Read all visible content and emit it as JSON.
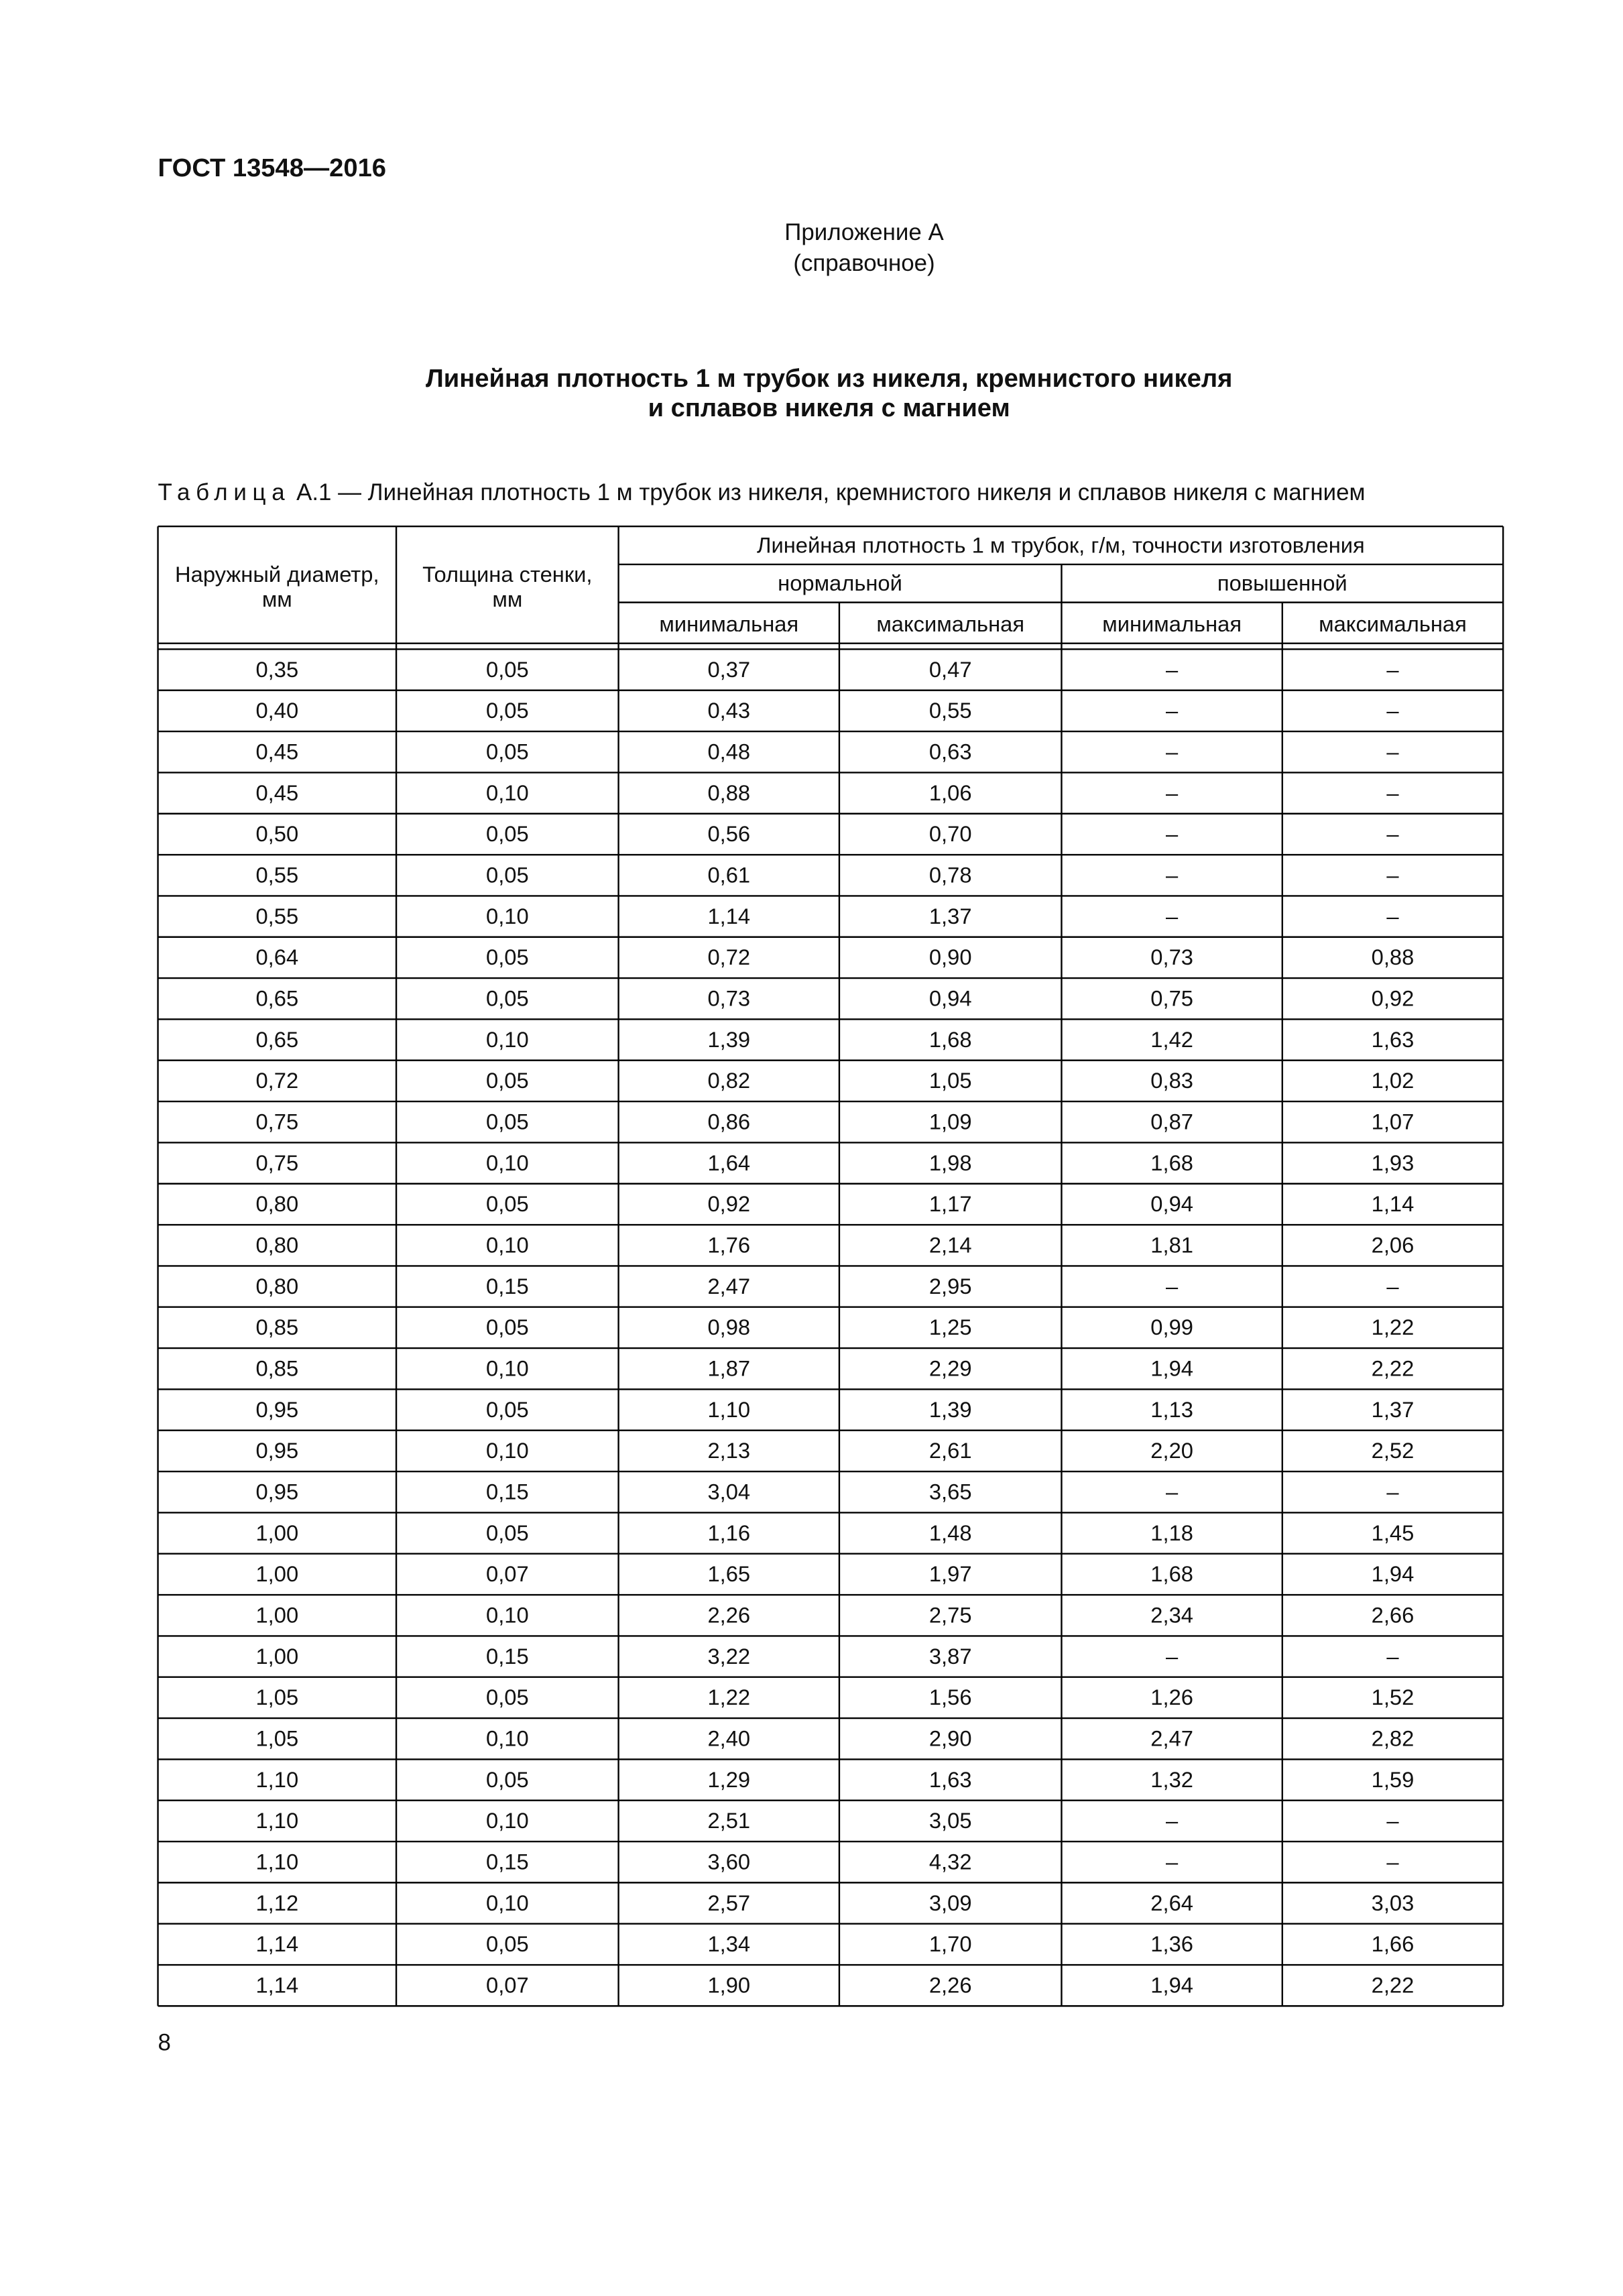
{
  "header": {
    "code": "ГОСТ 13548—2016"
  },
  "appendix": {
    "title": "Приложение А",
    "note": "(справочное)"
  },
  "title": [
    "Линейная плотность 1 м трубок из никеля, кремнистого никеля",
    "и сплавов никеля с магнием"
  ],
  "caption": {
    "label": "Таблица",
    "text": "А.1 — Линейная плотность 1 м трубок из никеля, кремнистого никеля и сплавов никеля с магнием"
  },
  "table": {
    "head": {
      "diameter": [
        "Наружный диаметр,",
        "мм"
      ],
      "wall": [
        "Толщина стенки,",
        "мм"
      ],
      "density": "Линейная плотность 1 м трубок, г/м,  точности изготовления",
      "normal": "нормальной",
      "high": "повышенной",
      "sub": [
        "минимальная",
        "максимальная",
        "минимальная",
        "максимальная"
      ]
    },
    "rows": [
      [
        "0,35",
        "0,05",
        "0,37",
        "0,47",
        "–",
        "–"
      ],
      [
        "0,40",
        "0,05",
        "0,43",
        "0,55",
        "–",
        "–"
      ],
      [
        "0,45",
        "0,05",
        "0,48",
        "0,63",
        "–",
        "–"
      ],
      [
        "0,45",
        "0,10",
        "0,88",
        "1,06",
        "–",
        "–"
      ],
      [
        "0,50",
        "0,05",
        "0,56",
        "0,70",
        "–",
        "–"
      ],
      [
        "0,55",
        "0,05",
        "0,61",
        "0,78",
        "–",
        "–"
      ],
      [
        "0,55",
        "0,10",
        "1,14",
        "1,37",
        "–",
        "–"
      ],
      [
        "0,64",
        "0,05",
        "0,72",
        "0,90",
        "0,73",
        "0,88"
      ],
      [
        "0,65",
        "0,05",
        "0,73",
        "0,94",
        "0,75",
        "0,92"
      ],
      [
        "0,65",
        "0,10",
        "1,39",
        "1,68",
        "1,42",
        "1,63"
      ],
      [
        "0,72",
        "0,05",
        "0,82",
        "1,05",
        "0,83",
        "1,02"
      ],
      [
        "0,75",
        "0,05",
        "0,86",
        "1,09",
        "0,87",
        "1,07"
      ],
      [
        "0,75",
        "0,10",
        "1,64",
        "1,98",
        "1,68",
        "1,93"
      ],
      [
        "0,80",
        "0,05",
        "0,92",
        "1,17",
        "0,94",
        "1,14"
      ],
      [
        "0,80",
        "0,10",
        "1,76",
        "2,14",
        "1,81",
        "2,06"
      ],
      [
        "0,80",
        "0,15",
        "2,47",
        "2,95",
        "–",
        "–"
      ],
      [
        "0,85",
        "0,05",
        "0,98",
        "1,25",
        "0,99",
        "1,22"
      ],
      [
        "0,85",
        "0,10",
        "1,87",
        "2,29",
        "1,94",
        "2,22"
      ],
      [
        "0,95",
        "0,05",
        "1,10",
        "1,39",
        "1,13",
        "1,37"
      ],
      [
        "0,95",
        "0,10",
        "2,13",
        "2,61",
        "2,20",
        "2,52"
      ],
      [
        "0,95",
        "0,15",
        "3,04",
        "3,65",
        "–",
        "–"
      ],
      [
        "1,00",
        "0,05",
        "1,16",
        "1,48",
        "1,18",
        "1,45"
      ],
      [
        "1,00",
        "0,07",
        "1,65",
        "1,97",
        "1,68",
        "1,94"
      ],
      [
        "1,00",
        "0,10",
        "2,26",
        "2,75",
        "2,34",
        "2,66"
      ],
      [
        "1,00",
        "0,15",
        "3,22",
        "3,87",
        "–",
        "–"
      ],
      [
        "1,05",
        "0,05",
        "1,22",
        "1,56",
        "1,26",
        "1,52"
      ],
      [
        "1,05",
        "0,10",
        "2,40",
        "2,90",
        "2,47",
        "2,82"
      ],
      [
        "1,10",
        "0,05",
        "1,29",
        "1,63",
        "1,32",
        "1,59"
      ],
      [
        "1,10",
        "0,10",
        "2,51",
        "3,05",
        "–",
        "–"
      ],
      [
        "1,10",
        "0,15",
        "3,60",
        "4,32",
        "–",
        "–"
      ],
      [
        "1,12",
        "0,10",
        "2,57",
        "3,09",
        "2,64",
        "3,03"
      ],
      [
        "1,14",
        "0,05",
        "1,34",
        "1,70",
        "1,36",
        "1,66"
      ],
      [
        "1,14",
        "0,07",
        "1,90",
        "2,26",
        "1,94",
        "2,22"
      ]
    ]
  },
  "page_number": "8"
}
